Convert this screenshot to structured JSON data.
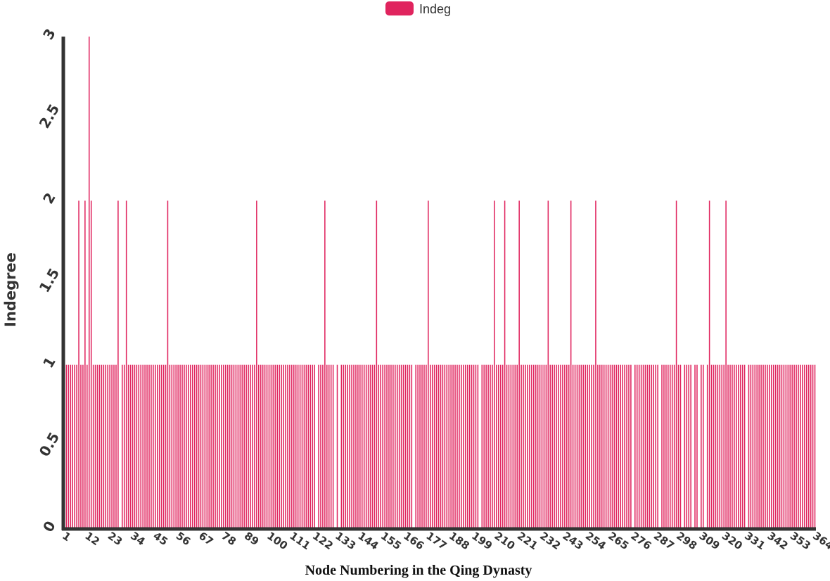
{
  "chart_data": {
    "type": "bar",
    "xlabel": "Node Numbering in the Qing Dynasty",
    "ylabel": "Indegree",
    "ylim": [
      0,
      3
    ],
    "yticks": [
      "0",
      "0.5",
      "1",
      "1.5",
      "2",
      "2.5",
      "3"
    ],
    "x_start": 1,
    "x_end": 364,
    "xtick_labels": [
      "1",
      "12",
      "23",
      "34",
      "45",
      "56",
      "67",
      "78",
      "89",
      "100",
      "111",
      "122",
      "133",
      "144",
      "155",
      "166",
      "177",
      "188",
      "199",
      "210",
      "221",
      "232",
      "243",
      "254",
      "265",
      "276",
      "287",
      "298",
      "309",
      "320",
      "331",
      "342",
      "353",
      "364"
    ],
    "series": [
      {
        "name": "Indeg",
        "color": "#e0245e",
        "default_value": 1,
        "overrides": {
          "8": 2,
          "11": 2,
          "13": 3,
          "14": 2,
          "27": 2,
          "31": 2,
          "51": 2,
          "94": 2,
          "127": 2,
          "152": 2,
          "177": 2,
          "209": 2,
          "214": 2,
          "221": 2,
          "235": 2,
          "246": 2,
          "258": 2,
          "297": 2,
          "313": 2,
          "321": 2,
          "28": 0,
          "123": 0,
          "132": 0,
          "134": 0,
          "170": 0,
          "202": 0,
          "276": 0,
          "289": 0,
          "300": 0,
          "305": 0,
          "308": 0,
          "311": 0,
          "331": 0
        }
      }
    ],
    "legend": {
      "position": "top-center"
    },
    "grid": false
  }
}
